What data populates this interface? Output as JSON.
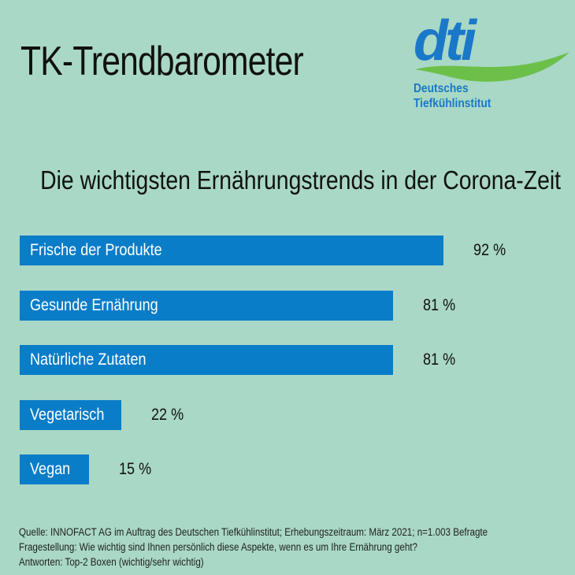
{
  "header": {
    "title": "TK-Trendbarometer",
    "logo_text": "dti",
    "logo_line1": "Deutsches",
    "logo_line2": "Tiefkühlinstitut"
  },
  "colors": {
    "background": "#a9d8c6",
    "bar": "#0a7dc8",
    "logo_blue": "#1a78c8",
    "logo_green": "#6cc04a"
  },
  "chart_data": {
    "type": "bar",
    "orientation": "horizontal",
    "title": "Die wichtigsten Ernährungstrends in der Corona-Zeit",
    "categories": [
      "Frische der Produkte",
      "Gesunde Ernährung",
      "Natürliche Zutaten",
      "Vegetarisch",
      "Vegan"
    ],
    "values": [
      92,
      81,
      81,
      22,
      15
    ],
    "value_labels": [
      "92 %",
      "81 %",
      "81 %",
      "22 %",
      "15 %"
    ],
    "xlim": [
      0,
      100
    ],
    "grid": false
  },
  "footnotes": [
    "Quelle: INNOFACT AG im Auftrag des Deutschen Tiefkühlinstitut; Erhebungszeitraum: März 2021; n=1.003 Befragte",
    "Fragestellung: Wie wichtig sind Ihnen persönlich diese Aspekte, wenn es um Ihre Ernährung geht?",
    "Antworten: Top-2 Boxen (wichtig/sehr wichtig)"
  ]
}
